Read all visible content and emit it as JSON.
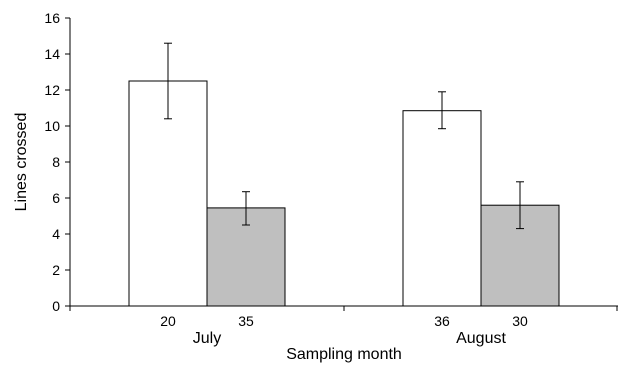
{
  "chart_data": {
    "type": "bar",
    "title": "",
    "xlabel": "Sampling month",
    "ylabel": "Lines crossed",
    "ylim": [
      0,
      16
    ],
    "yticks": [
      0,
      2,
      4,
      6,
      8,
      10,
      12,
      14,
      16
    ],
    "grid": false,
    "legend": "none",
    "categories": [
      "July",
      "August"
    ],
    "series": [
      {
        "color": "#ffffff",
        "values": [
          12.5,
          10.85
        ],
        "error_low": [
          10.4,
          9.85
        ],
        "error_high": [
          14.6,
          11.9
        ],
        "sample_sizes": [
          "20",
          "36"
        ]
      },
      {
        "color": "#bfbfbf",
        "values": [
          5.45,
          5.6
        ],
        "error_low": [
          4.5,
          4.3
        ],
        "error_high": [
          6.35,
          6.9
        ],
        "sample_sizes": [
          "35",
          "30"
        ]
      }
    ]
  }
}
